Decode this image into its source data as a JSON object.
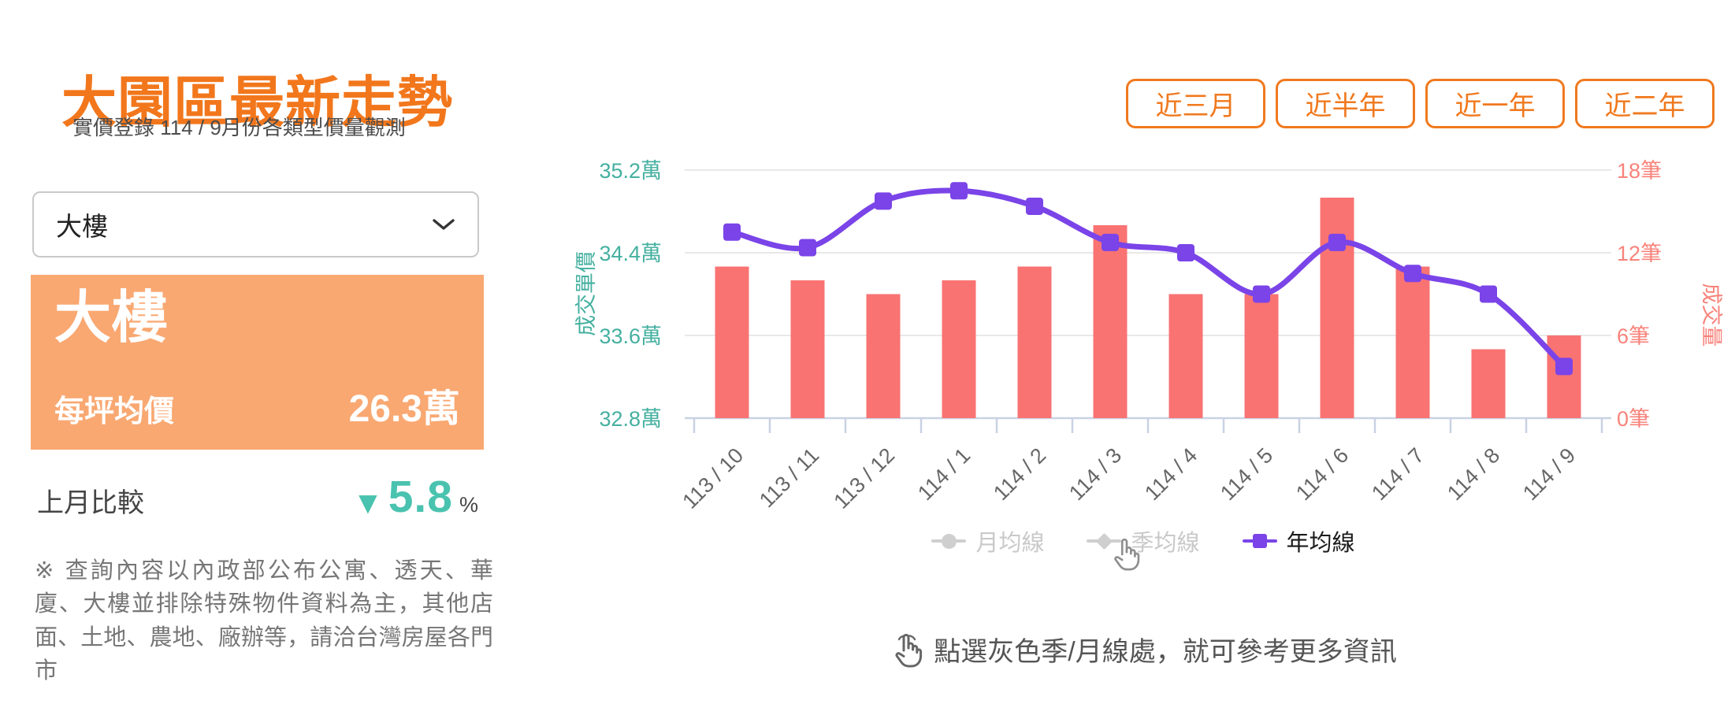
{
  "panel": {
    "title": "大園區最新走勢",
    "subtitle": "實價登錄 114 / 9月份各類型價量觀測",
    "dropdown_value": "大樓",
    "card": {
      "type_name": "大樓",
      "price_label": "每坪均價",
      "price_value": "26.3萬"
    },
    "comparison": {
      "label": "上月比較",
      "arrow": "▼",
      "value": "5.8",
      "unit": "%"
    },
    "disclaimer": "※ 查詢內容以內政部公布公寓、透天、華廈、大樓並排除特殊物件資料為主，其他店面、土地、農地、廠辦等，請洽台灣房屋各門市"
  },
  "range_buttons": [
    {
      "label": "近三月"
    },
    {
      "label": "近半年"
    },
    {
      "label": "近一年"
    },
    {
      "label": "近二年"
    }
  ],
  "legend": [
    {
      "label": "月均線",
      "marker": "circle",
      "state": "disabled"
    },
    {
      "label": "季均線",
      "marker": "diamond",
      "state": "disabled"
    },
    {
      "label": "年均線",
      "marker": "square",
      "state": "active"
    }
  ],
  "note": "點選灰色季/月線處，就可參考更多資訊",
  "colors": {
    "accent_orange": "#F2771C",
    "card_orange": "#F9A872",
    "teal": "#49C3AF",
    "axis_teal": "#45B0A0",
    "bar": "#F97373",
    "axis_red": "#F8837B",
    "line_purple": "#7A44E8",
    "grid": "#E8E8E8",
    "axis_line": "#C9D2E4",
    "x_label": "#666666",
    "legend_gray": "#cfcfcf"
  },
  "chart_data": {
    "type": "bar+line",
    "categories": [
      "113 / 10",
      "113 / 11",
      "113 / 12",
      "114 / 1",
      "114 / 2",
      "114 / 3",
      "114 / 4",
      "114 / 5",
      "114 / 6",
      "114 / 7",
      "114 / 8",
      "114 / 9"
    ],
    "series": [
      {
        "name": "成交量",
        "type": "bar",
        "axis": "right",
        "unit": "筆",
        "values": [
          11,
          10,
          9,
          10,
          11,
          14,
          9,
          9,
          16,
          11,
          5,
          6
        ]
      },
      {
        "name": "年均線",
        "type": "line",
        "axis": "left",
        "unit": "萬",
        "values": [
          34.6,
          34.45,
          34.9,
          35.0,
          34.85,
          34.5,
          34.4,
          34.0,
          34.5,
          34.2,
          34.0,
          33.3
        ]
      }
    ],
    "left_axis": {
      "title": "成交單價",
      "ticks": [
        "35.2萬",
        "34.4萬",
        "33.6萬",
        "32.8萬"
      ],
      "min": 32.8,
      "max": 35.2
    },
    "right_axis": {
      "title": "成交量",
      "ticks": [
        "18筆",
        "12筆",
        "6筆",
        "0筆"
      ],
      "min": 0,
      "max": 18
    },
    "grid": true,
    "legend_position": "bottom"
  }
}
